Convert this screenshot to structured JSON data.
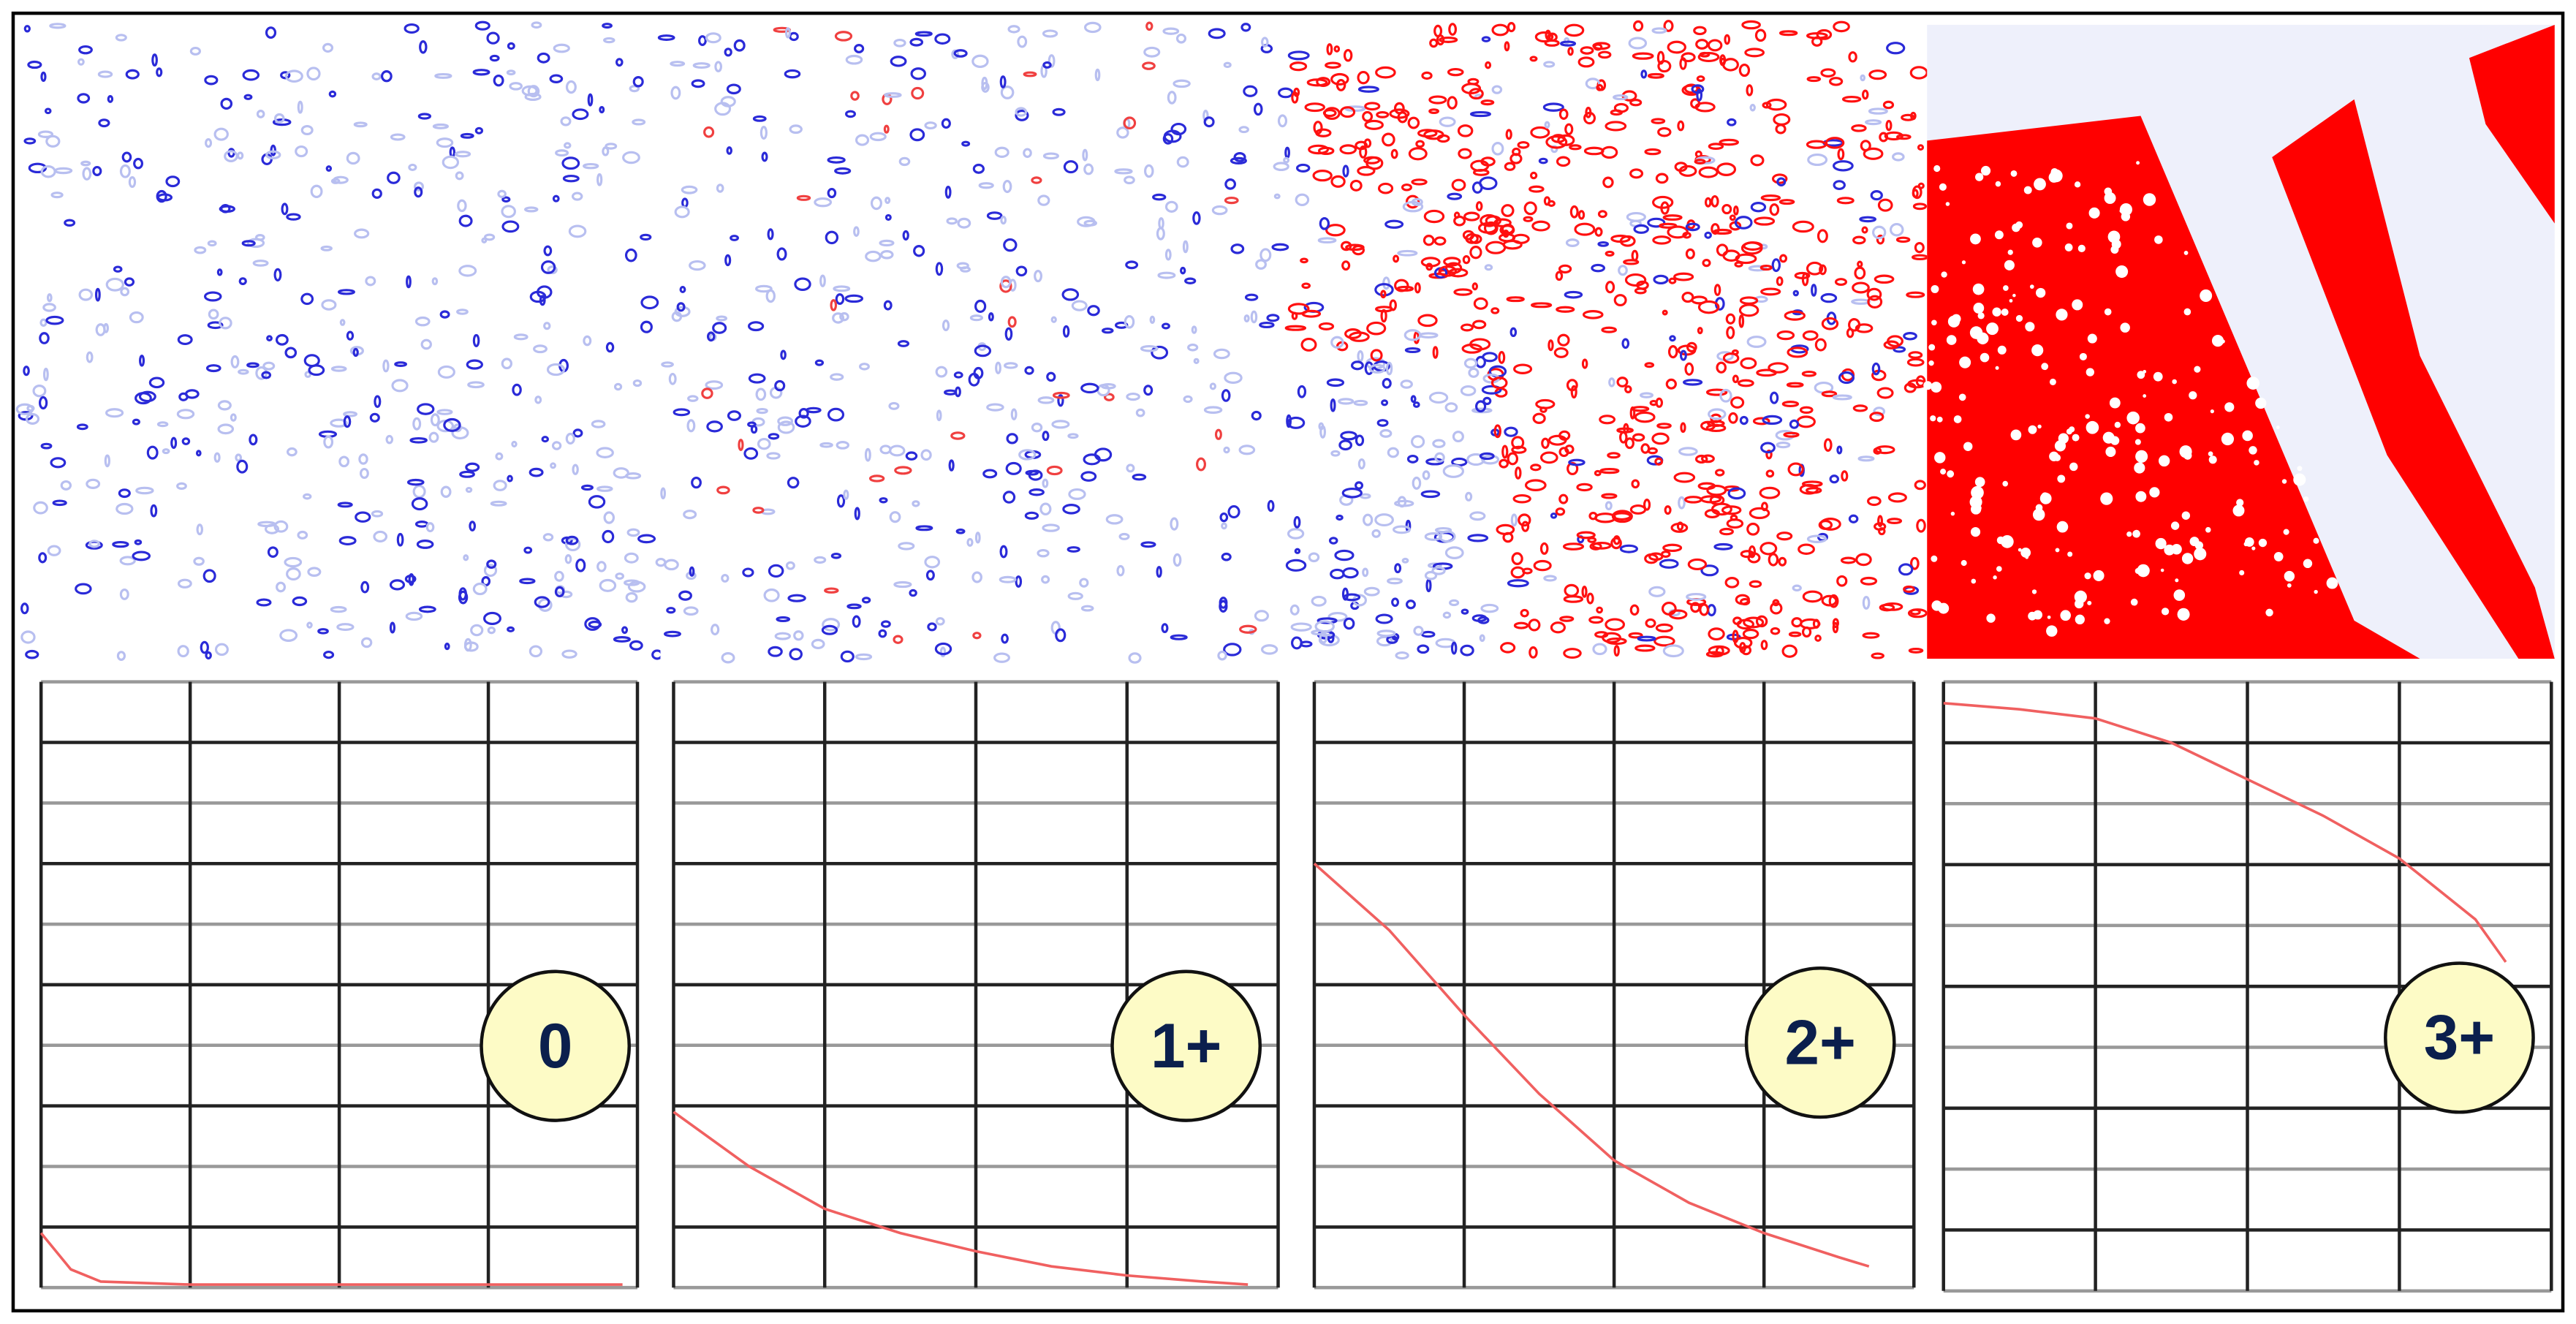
{
  "chart_data": [
    {
      "type": "line",
      "annotation": "0",
      "color": "#f06060",
      "xlim": [
        0,
        4
      ],
      "ylim": [
        0,
        10
      ],
      "xticks": [
        0,
        1,
        2,
        3,
        4
      ],
      "yticks": [
        0,
        1,
        2,
        3,
        4,
        5,
        6,
        7,
        8,
        9,
        10
      ],
      "grid": true,
      "x": [
        0,
        0.1,
        0.2,
        0.4,
        1,
        2,
        3,
        3.9
      ],
      "values": [
        0.9,
        0.6,
        0.3,
        0.1,
        0.05,
        0.05,
        0.05,
        0.05
      ]
    },
    {
      "type": "line",
      "annotation": "1+",
      "color": "#f06060",
      "xlim": [
        0,
        4
      ],
      "ylim": [
        0,
        10
      ],
      "xticks": [
        0,
        1,
        2,
        3,
        4
      ],
      "yticks": [
        0,
        1,
        2,
        3,
        4,
        5,
        6,
        7,
        8,
        9,
        10
      ],
      "grid": true,
      "x": [
        0,
        0.5,
        1,
        1.5,
        2,
        2.5,
        3,
        3.5,
        3.8
      ],
      "values": [
        2.9,
        2.0,
        1.3,
        0.9,
        0.6,
        0.35,
        0.2,
        0.1,
        0.05
      ]
    },
    {
      "type": "line",
      "annotation": "2+",
      "color": "#f06060",
      "xlim": [
        0,
        4
      ],
      "ylim": [
        0,
        10
      ],
      "xticks": [
        0,
        1,
        2,
        3,
        4
      ],
      "yticks": [
        0,
        1,
        2,
        3,
        4,
        5,
        6,
        7,
        8,
        9,
        10
      ],
      "grid": true,
      "x": [
        0,
        0.5,
        1,
        1.5,
        2,
        2.5,
        3,
        3.5,
        3.7
      ],
      "values": [
        7,
        5.9,
        4.5,
        3.2,
        2.1,
        1.4,
        0.9,
        0.5,
        0.35
      ]
    },
    {
      "type": "line",
      "annotation": "3+",
      "color": "#f06060",
      "xlim": [
        0,
        4
      ],
      "ylim": [
        0,
        10
      ],
      "xticks": [
        0,
        1,
        2,
        3,
        4
      ],
      "yticks": [
        0,
        1,
        2,
        3,
        4,
        5,
        6,
        7,
        8,
        9,
        10
      ],
      "grid": true,
      "x": [
        0,
        0.5,
        1,
        1.5,
        2,
        2.5,
        3,
        3.5,
        3.7
      ],
      "values": [
        9.65,
        9.55,
        9.4,
        9.0,
        8.4,
        7.8,
        7.1,
        6.1,
        5.4
      ]
    }
  ]
}
